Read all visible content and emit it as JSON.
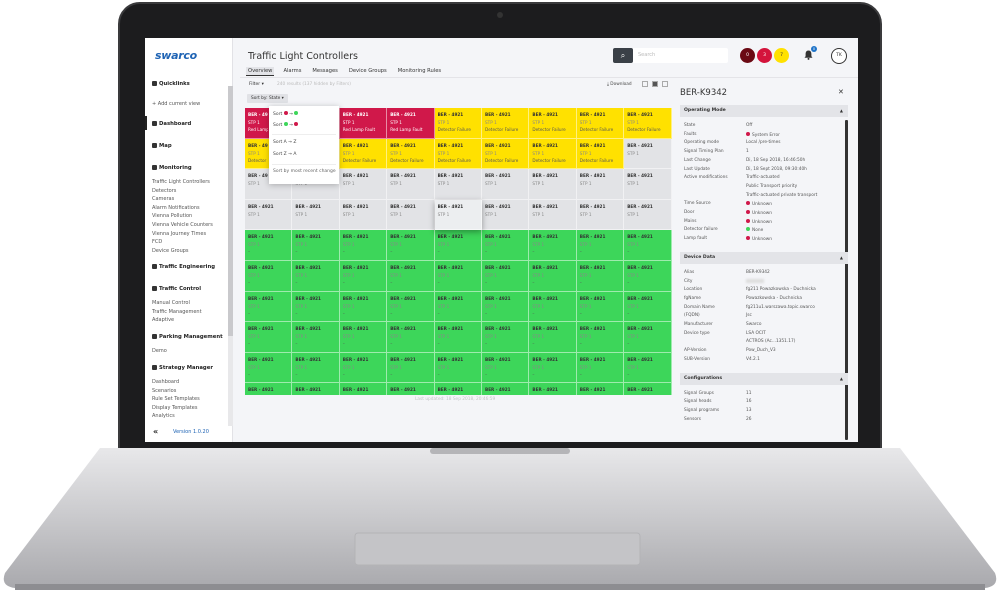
{
  "brand": {
    "logo": "swarco"
  },
  "sidebar": {
    "quicklinks": "Quicklinks",
    "add_view": "+ Add current view",
    "dashboard": "Dashboard",
    "map": "Map",
    "monitoring": "Monitoring",
    "monitoring_items": [
      "Traffic Light Controllers",
      "Detectors",
      "Cameras",
      "Alarm Notifications",
      "Vienna Pollution",
      "Vienna Vehicle Counters",
      "Vienna Journey Times",
      "FCD",
      "Device Groups"
    ],
    "traffic_engineering": "Traffic Engineering",
    "traffic_control": "Traffic Control",
    "traffic_control_items": [
      "Manual Control",
      "Traffic Management",
      "Adaptive"
    ],
    "parking": "Parking Management",
    "parking_items": [
      "Demo"
    ],
    "strategy": "Strategy Manager",
    "strategy_items": [
      "Dashboard",
      "Scenarios",
      "Rule Set Templates",
      "Display Templates",
      "Analytics"
    ],
    "collapse_icon": "double-chevron-left",
    "version": "Version 1.0.20"
  },
  "header": {
    "title": "Traffic Light Controllers",
    "tabs": [
      "Overview",
      "Alarms",
      "Messages",
      "Device Groups",
      "Monitoring Rules"
    ],
    "active_tab": "Overview",
    "search_placeholder": "Search",
    "alarm_badges": [
      {
        "count": "0",
        "color": "#6b0a14"
      },
      {
        "count": "3",
        "color": "#d4143c"
      },
      {
        "count": "7",
        "color": "#ffe100"
      }
    ],
    "notifications": "0",
    "user_initials": "TK"
  },
  "toolbar": {
    "filter": "Filter ▾",
    "results": "240 results (137 hidden by Filters)",
    "sort": "Sort by: State ▾",
    "download": "Download"
  },
  "sort_menu": {
    "items": [
      "Sort",
      "Sort",
      "Sort A → Z",
      "Sort Z → A",
      "Sort by most recent change"
    ]
  },
  "grid": {
    "device": "BER - 4921",
    "program": "STP 1",
    "faults": {
      "red": "Red Lamp Fault",
      "yellow": "Detector Failure",
      "gray": "",
      "green": "–"
    },
    "colors": {
      "red": "#d0184a",
      "yellow": "#ffe100",
      "gray": "#e2e3e6",
      "green": "#3dd65a"
    },
    "rows": [
      [
        "red",
        "red",
        "red",
        "red",
        "yellow",
        "yellow",
        "yellow",
        "yellow",
        "yellow"
      ],
      [
        "yellow",
        "yellow",
        "yellow",
        "yellow",
        "yellow",
        "yellow",
        "yellow",
        "yellow",
        "gray"
      ],
      [
        "gray",
        "gray",
        "gray",
        "gray",
        "gray",
        "gray",
        "gray",
        "gray",
        "gray"
      ],
      [
        "gray",
        "gray",
        "gray",
        "gray",
        "gray",
        "gray",
        "gray",
        "gray",
        "gray"
      ],
      [
        "green",
        "green",
        "green",
        "green",
        "green",
        "green",
        "green",
        "green",
        "green"
      ],
      [
        "green",
        "green",
        "green",
        "green",
        "green",
        "green",
        "green",
        "green",
        "green"
      ],
      [
        "green",
        "green",
        "green",
        "green",
        "green",
        "green",
        "green",
        "green",
        "green"
      ],
      [
        "green",
        "green",
        "green",
        "green",
        "green",
        "green",
        "green",
        "green",
        "green"
      ],
      [
        "green",
        "green",
        "green",
        "green",
        "green",
        "green",
        "green",
        "green",
        "green"
      ],
      [
        "green",
        "green",
        "green",
        "green",
        "green",
        "green",
        "green",
        "green",
        "green"
      ]
    ],
    "last_updated": "Last updated: 18 Sep 2018, 20:46:59"
  },
  "panel": {
    "title": "BER-K9342",
    "operating_mode": {
      "title": "Operating Mode",
      "rows": [
        {
          "k": "State",
          "v": "Off"
        },
        {
          "k": "Faults",
          "v": "System Error",
          "dot": "#d0184a"
        },
        {
          "k": "Operating mode",
          "v": "Local /pre-times"
        },
        {
          "k": "Signal Timing Plan",
          "v": "1"
        },
        {
          "k": "Last Change",
          "v": "Di, 18 Sep 2018, 16:46:50h"
        },
        {
          "k": "Last Update",
          "v": "Di, 18 Sept 2018, 09:30:40h"
        },
        {
          "k": "Active modifications",
          "v": "Traffic-actuated"
        },
        {
          "k": "",
          "v": "Public Transport priority"
        },
        {
          "k": "",
          "v": "Traffic-actuated private transport"
        },
        {
          "k": "Time Source",
          "v": "Unknown",
          "dot": "#d0184a"
        },
        {
          "k": "Door",
          "v": "Unknown",
          "dot": "#d0184a"
        },
        {
          "k": "Mains",
          "v": "Unknown",
          "dot": "#d0184a"
        },
        {
          "k": "Detector failure",
          "v": "None",
          "dot": "#3dd65a"
        },
        {
          "k": "Lamp fault",
          "v": "Unknown",
          "dot": "#d0184a"
        }
      ]
    },
    "device_data": {
      "title": "Device Data",
      "rows": [
        {
          "k": "Alias",
          "v": "BER-K9342"
        },
        {
          "k": "City",
          "v": ""
        },
        {
          "k": "Location",
          "v": "fg211 Powazkowska - Duchnicka"
        },
        {
          "k": "fgName",
          "v": "Powazkowska - Duchnicka"
        },
        {
          "k": "Domain Name",
          "v": "fg211u1.warszawa.topic.swarco"
        },
        {
          "k": "(FQDN)",
          "v": "Jsc"
        },
        {
          "k": "Manufacturer",
          "v": "Swarco"
        },
        {
          "k": "Device type",
          "v": "LSA OCIT"
        },
        {
          "k": "",
          "v": "ACTROS (Ac...1351.17)"
        },
        {
          "k": "AP-Version",
          "v": "Pow_Duch_V3"
        },
        {
          "k": "SUB-Version",
          "v": "V4.2.1"
        }
      ]
    },
    "configurations": {
      "title": "Configurations",
      "rows": [
        {
          "k": "Signal Groups",
          "v": "11"
        },
        {
          "k": "Signal heads",
          "v": "16"
        },
        {
          "k": "Signal programs",
          "v": "13"
        },
        {
          "k": "Sensors",
          "v": "26"
        }
      ]
    }
  }
}
